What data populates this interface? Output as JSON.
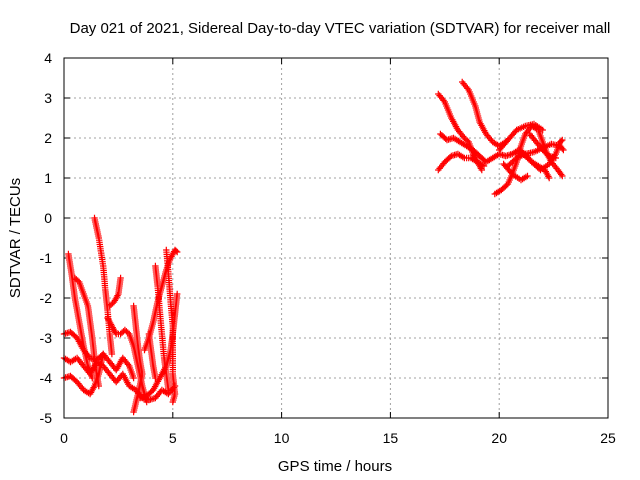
{
  "chart_data": {
    "type": "scatter",
    "title": "Day 021 of 2021, Sidereal Day-to-day VTEC variation (SDTVAR) for receiver mall",
    "xlabel": "GPS time / hours",
    "ylabel": "SDTVAR / TECUs",
    "xlim": [
      0,
      25
    ],
    "ylim": [
      -5,
      4
    ],
    "xticks": [
      0,
      5,
      10,
      15,
      20,
      25
    ],
    "yticks": [
      -5,
      -4,
      -3,
      -2,
      -1,
      0,
      1,
      2,
      3,
      4
    ],
    "grid": true,
    "marker": "+",
    "color": "#ff0000",
    "series": [
      {
        "segments": [
          [
            [
              0.0,
              -2.9
            ],
            [
              0.3,
              -2.85
            ],
            [
              0.6,
              -3.0
            ],
            [
              0.9,
              -3.3
            ],
            [
              1.2,
              -3.5
            ],
            [
              1.5,
              -3.55
            ],
            [
              1.8,
              -3.4
            ],
            [
              2.1,
              -3.6
            ],
            [
              2.4,
              -3.8
            ],
            [
              2.7,
              -3.5
            ],
            [
              3.0,
              -3.7
            ],
            [
              3.2,
              -4.0
            ]
          ],
          [
            [
              0.0,
              -3.5
            ],
            [
              0.3,
              -3.6
            ],
            [
              0.6,
              -3.5
            ],
            [
              0.9,
              -3.7
            ],
            [
              1.2,
              -3.9
            ],
            [
              1.5,
              -3.6
            ],
            [
              1.8,
              -3.7
            ],
            [
              2.1,
              -3.9
            ],
            [
              2.4,
              -4.1
            ],
            [
              2.7,
              -3.9
            ],
            [
              3.0,
              -4.2
            ],
            [
              3.3,
              -4.3
            ],
            [
              3.6,
              -4.5
            ],
            [
              3.9,
              -4.55
            ],
            [
              4.2,
              -4.5
            ],
            [
              4.5,
              -4.3
            ],
            [
              4.8,
              -4.4
            ],
            [
              5.1,
              -4.2
            ]
          ],
          [
            [
              0.0,
              -4.0
            ],
            [
              0.3,
              -3.95
            ],
            [
              0.6,
              -4.1
            ],
            [
              0.9,
              -4.3
            ],
            [
              1.2,
              -4.4
            ],
            [
              1.4,
              -4.2
            ],
            [
              1.6,
              -3.9
            ],
            [
              1.8,
              -3.4
            ]
          ],
          [
            [
              0.2,
              -0.9
            ],
            [
              0.35,
              -1.4
            ],
            [
              0.5,
              -2.0
            ],
            [
              0.7,
              -2.6
            ],
            [
              0.9,
              -3.2
            ],
            [
              1.1,
              -3.7
            ],
            [
              1.3,
              -4.0
            ]
          ],
          [
            [
              0.5,
              -1.5
            ],
            [
              0.7,
              -1.6
            ],
            [
              0.9,
              -1.9
            ],
            [
              1.1,
              -2.2
            ],
            [
              1.2,
              -2.6
            ],
            [
              1.3,
              -3.0
            ],
            [
              1.4,
              -3.5
            ],
            [
              1.5,
              -3.9
            ],
            [
              1.6,
              -4.2
            ]
          ],
          [
            [
              1.4,
              0.0
            ],
            [
              1.6,
              -0.5
            ],
            [
              1.8,
              -1.2
            ],
            [
              1.9,
              -1.8
            ],
            [
              2.0,
              -2.3
            ],
            [
              2.1,
              -2.9
            ],
            [
              2.2,
              -3.4
            ]
          ],
          [
            [
              2.0,
              -2.5
            ],
            [
              2.2,
              -2.7
            ],
            [
              2.4,
              -2.9
            ],
            [
              2.6,
              -2.9
            ],
            [
              2.8,
              -2.8
            ],
            [
              3.0,
              -2.9
            ],
            [
              3.2,
              -3.2
            ],
            [
              3.4,
              -3.7
            ],
            [
              3.6,
              -4.2
            ],
            [
              3.8,
              -4.6
            ]
          ],
          [
            [
              2.6,
              -1.5
            ],
            [
              2.5,
              -1.9
            ],
            [
              2.3,
              -2.1
            ],
            [
              2.1,
              -2.2
            ]
          ],
          [
            [
              3.2,
              -2.2
            ],
            [
              3.3,
              -2.7
            ],
            [
              3.4,
              -3.2
            ],
            [
              3.5,
              -3.6
            ],
            [
              3.6,
              -3.9
            ],
            [
              3.4,
              -4.4
            ],
            [
              3.2,
              -4.85
            ]
          ],
          [
            [
              3.7,
              -3.3
            ],
            [
              3.9,
              -3.0
            ],
            [
              4.1,
              -2.6
            ],
            [
              4.3,
              -2.1
            ],
            [
              4.5,
              -1.7
            ],
            [
              4.7,
              -1.3
            ],
            [
              4.9,
              -1.0
            ],
            [
              5.1,
              -0.8
            ],
            [
              5.2,
              -0.85
            ]
          ],
          [
            [
              4.2,
              -1.2
            ],
            [
              4.3,
              -1.7
            ],
            [
              4.4,
              -2.3
            ],
            [
              4.5,
              -2.9
            ],
            [
              4.6,
              -3.5
            ],
            [
              4.7,
              -3.9
            ],
            [
              4.8,
              -4.3
            ]
          ],
          [
            [
              4.7,
              -0.8
            ],
            [
              4.8,
              -1.4
            ],
            [
              4.9,
              -2.1
            ],
            [
              5.0,
              -2.7
            ],
            [
              5.0,
              -3.3
            ],
            [
              5.0,
              -3.9
            ],
            [
              5.1,
              -4.4
            ],
            [
              5.0,
              -4.6
            ]
          ],
          [
            [
              5.2,
              -1.9
            ],
            [
              5.1,
              -2.4
            ],
            [
              5.0,
              -2.9
            ],
            [
              4.9,
              -3.3
            ],
            [
              4.7,
              -3.7
            ],
            [
              4.4,
              -4.0
            ],
            [
              4.1,
              -4.3
            ],
            [
              3.8,
              -4.45
            ],
            [
              3.5,
              -4.5
            ]
          ],
          [
            [
              3.9,
              -2.9
            ],
            [
              4.0,
              -3.3
            ],
            [
              4.1,
              -3.7
            ],
            [
              4.2,
              -4.0
            ]
          ],
          [
            [
              17.2,
              3.1
            ],
            [
              17.5,
              2.9
            ],
            [
              17.8,
              2.5
            ],
            [
              18.1,
              2.2
            ],
            [
              18.4,
              2.0
            ],
            [
              18.6,
              1.9
            ],
            [
              18.8,
              1.6
            ],
            [
              19.0,
              1.4
            ],
            [
              19.2,
              1.2
            ]
          ],
          [
            [
              17.3,
              2.1
            ],
            [
              17.6,
              1.95
            ],
            [
              17.9,
              2.0
            ],
            [
              18.2,
              1.9
            ],
            [
              18.5,
              1.8
            ],
            [
              18.8,
              1.7
            ],
            [
              19.1,
              1.55
            ],
            [
              19.4,
              1.4
            ],
            [
              19.7,
              1.5
            ],
            [
              20.0,
              1.6
            ],
            [
              20.3,
              1.55
            ],
            [
              20.6,
              1.6
            ],
            [
              20.9,
              1.7
            ],
            [
              21.2,
              1.6
            ],
            [
              21.5,
              1.4
            ],
            [
              21.8,
              1.3
            ],
            [
              22.1,
              1.2
            ],
            [
              22.3,
              1.0
            ]
          ],
          [
            [
              17.2,
              1.2
            ],
            [
              17.5,
              1.4
            ],
            [
              17.8,
              1.55
            ],
            [
              18.1,
              1.6
            ],
            [
              18.4,
              1.5
            ],
            [
              18.7,
              1.5
            ],
            [
              19.0,
              1.4
            ],
            [
              19.3,
              1.3
            ]
          ],
          [
            [
              18.3,
              3.4
            ],
            [
              18.6,
              3.2
            ],
            [
              18.9,
              2.8
            ],
            [
              19.1,
              2.4
            ],
            [
              19.4,
              2.1
            ],
            [
              19.7,
              1.9
            ],
            [
              20.0,
              1.8
            ],
            [
              20.3,
              1.9
            ]
          ],
          [
            [
              19.8,
              0.6
            ],
            [
              20.1,
              0.7
            ],
            [
              20.4,
              0.85
            ],
            [
              20.6,
              1.1
            ],
            [
              20.8,
              1.4
            ],
            [
              21.0,
              1.8
            ],
            [
              21.2,
              2.1
            ],
            [
              21.5,
              2.3
            ],
            [
              21.8,
              2.2
            ],
            [
              22.0,
              1.9
            ],
            [
              22.2,
              1.6
            ],
            [
              22.4,
              1.4
            ],
            [
              22.7,
              1.2
            ],
            [
              22.9,
              1.05
            ]
          ],
          [
            [
              20.0,
              1.7
            ],
            [
              20.4,
              1.95
            ],
            [
              20.8,
              2.2
            ],
            [
              21.2,
              2.3
            ],
            [
              21.6,
              2.35
            ],
            [
              22.0,
              2.2
            ]
          ],
          [
            [
              20.4,
              1.3
            ],
            [
              20.8,
              1.5
            ],
            [
              21.2,
              1.6
            ],
            [
              21.6,
              1.65
            ],
            [
              22.0,
              1.75
            ],
            [
              22.4,
              1.85
            ],
            [
              22.8,
              1.8
            ],
            [
              22.95,
              1.7
            ]
          ],
          [
            [
              21.1,
              1.6
            ],
            [
              21.5,
              1.4
            ],
            [
              21.9,
              1.2
            ],
            [
              22.3,
              1.35
            ],
            [
              22.6,
              1.6
            ],
            [
              22.8,
              1.9
            ],
            [
              22.9,
              1.95
            ]
          ],
          [
            [
              20.2,
              1.35
            ],
            [
              20.6,
              1.1
            ],
            [
              21.0,
              0.95
            ],
            [
              21.3,
              1.05
            ]
          ],
          [
            [
              21.4,
              2.1
            ],
            [
              21.7,
              1.9
            ],
            [
              22.0,
              1.7
            ],
            [
              22.3,
              1.55
            ],
            [
              22.6,
              1.5
            ]
          ]
        ]
      }
    ]
  }
}
